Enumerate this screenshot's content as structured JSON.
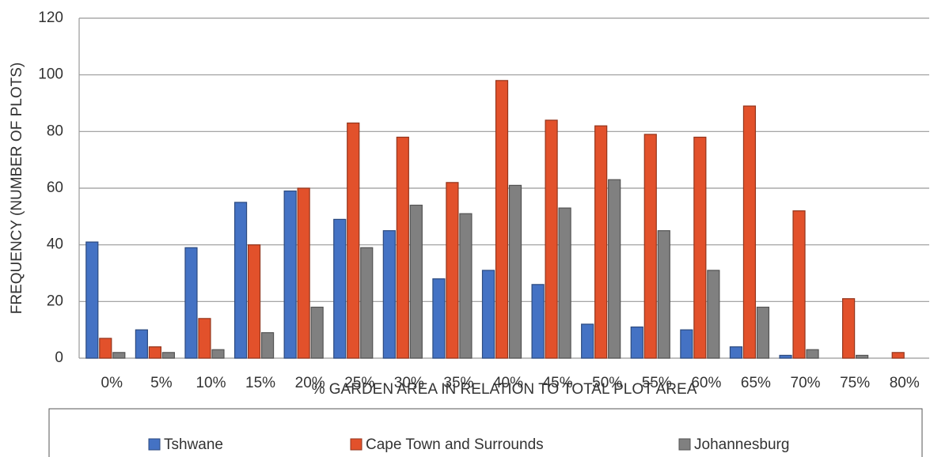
{
  "chart_data": {
    "type": "bar",
    "xlabel": "% GARDEN AREA IN RELATION TO TOTAL PLOT AREA",
    "ylabel": "FREQUENCY (NUMBER OF PLOTS)",
    "categories": [
      "0%",
      "5%",
      "10%",
      "15%",
      "20%",
      "25%",
      "30%",
      "35%",
      "40%",
      "45%",
      "50%",
      "55%",
      "60%",
      "65%",
      "70%",
      "75%",
      "80%"
    ],
    "series": [
      {
        "name": "Tshwane",
        "color": "#4472c4",
        "values": [
          41,
          10,
          39,
          55,
          59,
          49,
          45,
          28,
          31,
          26,
          12,
          11,
          10,
          4,
          1,
          0,
          0
        ]
      },
      {
        "name": "Cape Town and Surrounds",
        "color": "#e2512b",
        "values": [
          7,
          4,
          14,
          40,
          60,
          83,
          78,
          62,
          98,
          84,
          82,
          79,
          78,
          89,
          52,
          21,
          2
        ]
      },
      {
        "name": "Johannesburg",
        "color": "#808080",
        "values": [
          2,
          2,
          3,
          9,
          18,
          39,
          54,
          51,
          61,
          53,
          63,
          45,
          31,
          18,
          3,
          1,
          0
        ]
      }
    ],
    "ylim": [
      0,
      120
    ],
    "yticks": [
      0,
      20,
      40,
      60,
      80,
      100,
      120
    ],
    "grid": true,
    "legend": "bottom"
  }
}
